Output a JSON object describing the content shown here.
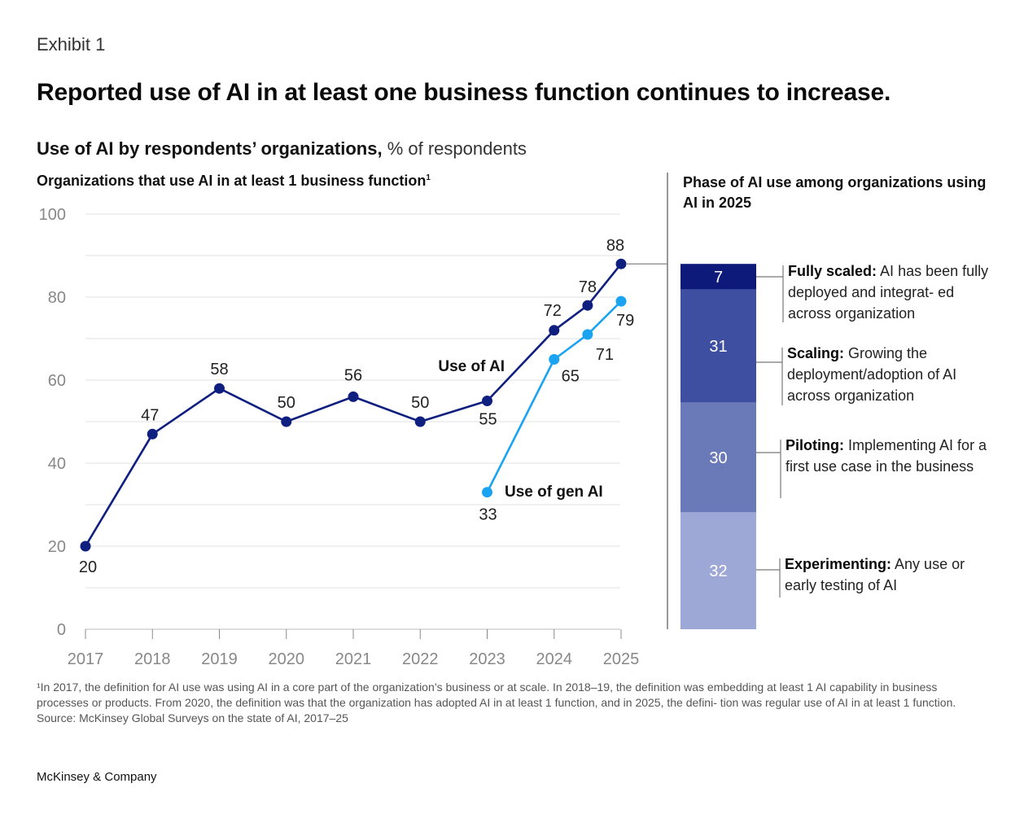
{
  "exhibit": "Exhibit 1",
  "title": "Reported use of AI in at least one business function continues to increase.",
  "subtitle": {
    "bold": "Use of AI by respondents’ organizations,",
    "unit": " % of respondents"
  },
  "left_heading": "Organizations that use AI in at least 1 business function",
  "left_heading_sup": "1",
  "right_heading": "Phase of AI use among organizations using AI in 2025",
  "chart_data": [
    {
      "type": "line",
      "x": [
        "2017",
        "2018",
        "2019",
        "2020",
        "2021",
        "2022",
        "2023",
        "2024",
        "2024.5",
        "2025"
      ],
      "tick_labels": [
        "2017",
        "2018",
        "2019",
        "2020",
        "2021",
        "2022",
        "2023",
        "2024",
        "2025"
      ],
      "ylim": [
        0,
        100
      ],
      "yticks": [
        "0",
        "20",
        "40",
        "60",
        "80",
        "100"
      ],
      "grid": true,
      "series": [
        {
          "name": "Use of AI",
          "color": "#0f1f80",
          "points": [
            {
              "x": 2017,
              "y": 20,
              "label": "20"
            },
            {
              "x": 2018,
              "y": 47,
              "label": "47"
            },
            {
              "x": 2019,
              "y": 58,
              "label": "58"
            },
            {
              "x": 2020,
              "y": 50,
              "label": "50"
            },
            {
              "x": 2021,
              "y": 56,
              "label": "56"
            },
            {
              "x": 2022,
              "y": 50,
              "label": "50"
            },
            {
              "x": 2023,
              "y": 55,
              "label": "55"
            },
            {
              "x": 2024,
              "y": 72,
              "label": "72"
            },
            {
              "x": 2024.5,
              "y": 78,
              "label": "78"
            },
            {
              "x": 2025,
              "y": 88,
              "label": "88"
            }
          ]
        },
        {
          "name": "Use of gen AI",
          "color": "#1aa3f0",
          "points": [
            {
              "x": 2023,
              "y": 33,
              "label": "33"
            },
            {
              "x": 2024,
              "y": 65,
              "label": "65"
            },
            {
              "x": 2024.5,
              "y": 71,
              "label": "71"
            },
            {
              "x": 2025,
              "y": 79,
              "label": "79"
            }
          ]
        }
      ]
    },
    {
      "type": "bar",
      "stacked": true,
      "categories": [
        "2025"
      ],
      "series": [
        {
          "name": "Fully scaled",
          "value": 7,
          "color": "#0e1a7a"
        },
        {
          "name": "Scaling",
          "value": 31,
          "color": "#3e4fa2"
        },
        {
          "name": "Piloting",
          "value": 30,
          "color": "#6a79b8"
        },
        {
          "name": "Experimenting",
          "value": 32,
          "color": "#9ea8d6"
        }
      ]
    }
  ],
  "phases": [
    {
      "bold": "Fully scaled:",
      "rest": " AI has been fully deployed and integrat- ed across organization"
    },
    {
      "bold": "Scaling:",
      "rest": " Growing the deployment/adoption of AI across organization"
    },
    {
      "bold": "Piloting:",
      "rest": " Implementing AI for a first use case in the business"
    },
    {
      "bold": "Experimenting:",
      "rest": " Any use or early testing of AI"
    }
  ],
  "footnote": "¹In 2017, the definition for AI use was using AI in a core part of the organization’s business or at scale. In 2018–19, the definition was embedding at least 1 AI capability in business processes or products. From 2020, the definition was that the organization has adopted AI in at least 1 function, and in 2025, the defini- tion was regular use of AI in at least 1 function.",
  "source": "Source: McKinsey Global Surveys on the state of AI, 2017–25",
  "brand": "McKinsey & Company"
}
